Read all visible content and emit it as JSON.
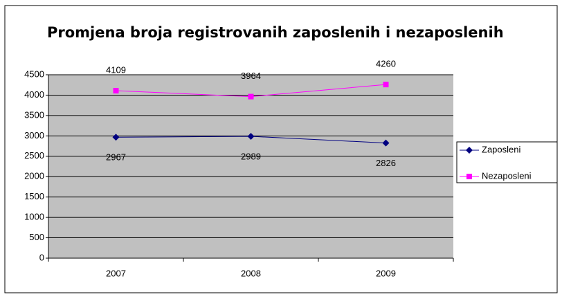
{
  "chart_data": {
    "type": "line",
    "title": "Promjena broja registrovanih zaposlenih i nezaposlenih",
    "categories": [
      "2007",
      "2008",
      "2009"
    ],
    "series": [
      {
        "name": "Zaposleni",
        "color": "#000080",
        "marker": "diamond",
        "label_position": "below",
        "values": [
          2967,
          2989,
          2826
        ]
      },
      {
        "name": "Nezaposleni",
        "color": "#ff00ff",
        "marker": "square",
        "label_position": "above",
        "values": [
          4109,
          3964,
          4260
        ]
      }
    ],
    "ylim": [
      0,
      4500
    ],
    "yticks": [
      0,
      500,
      1000,
      1500,
      2000,
      2500,
      3000,
      3500,
      4000,
      4500
    ],
    "grid": true,
    "legend": "right",
    "plot_background": "#c0c0c0"
  }
}
